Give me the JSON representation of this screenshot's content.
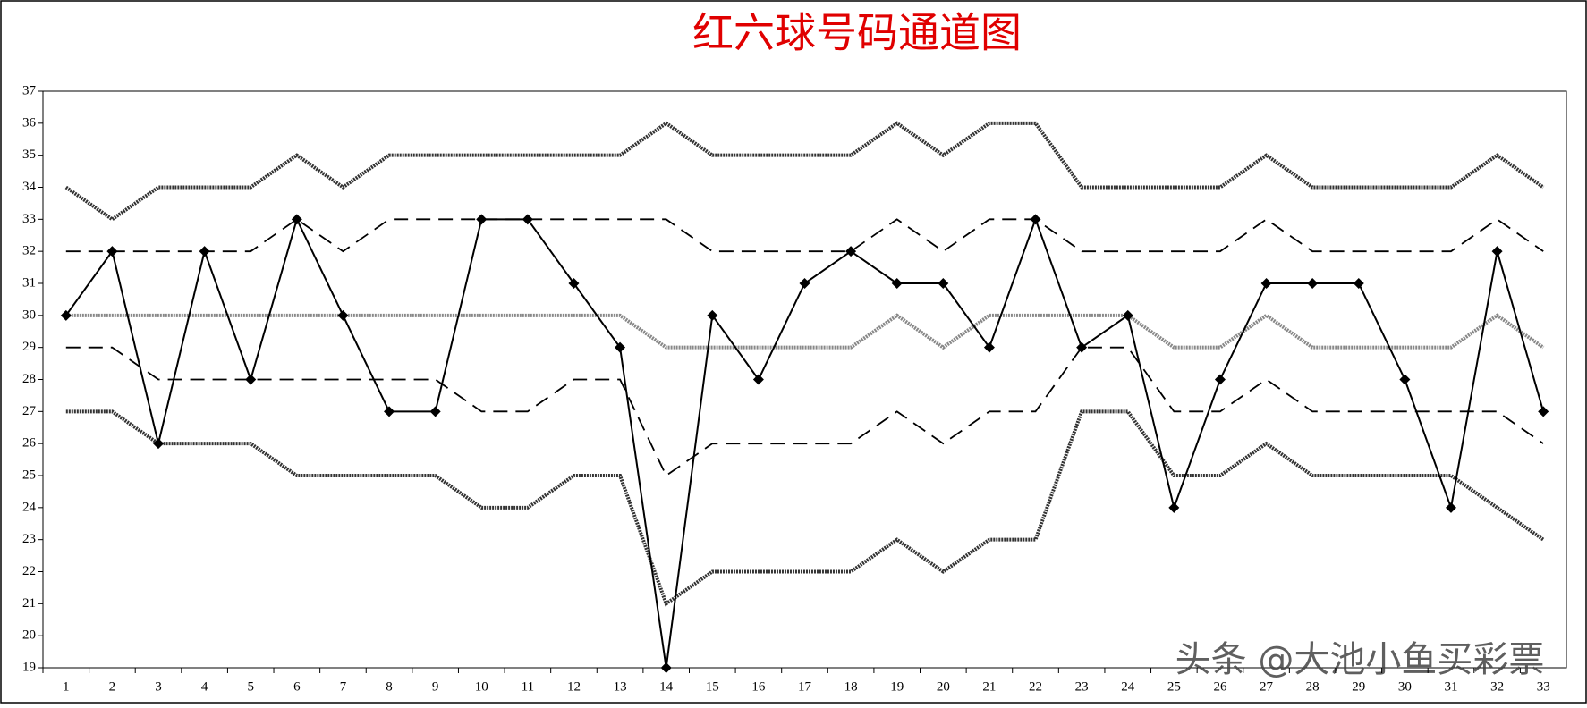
{
  "chart_data": {
    "type": "line",
    "title": "红六球号码通道图",
    "watermark": "头条 @大池小鱼买彩票",
    "categories": [
      "1",
      "2",
      "3",
      "4",
      "5",
      "6",
      "7",
      "8",
      "9",
      "10",
      "11",
      "12",
      "13",
      "14",
      "15",
      "16",
      "17",
      "18",
      "19",
      "20",
      "21",
      "22",
      "23",
      "24",
      "25",
      "26",
      "27",
      "28",
      "29",
      "30",
      "31",
      "32",
      "33"
    ],
    "ylim": [
      19,
      37
    ],
    "yticks": [
      19,
      20,
      21,
      22,
      23,
      24,
      25,
      26,
      27,
      28,
      29,
      30,
      31,
      32,
      33,
      34,
      35,
      36,
      37
    ],
    "grid": false,
    "series": [
      {
        "color": "#333333",
        "line_style": "textured",
        "values": [
          34,
          33,
          34,
          34,
          34,
          35,
          34,
          35,
          35,
          35,
          35,
          35,
          35,
          36,
          35,
          35,
          35,
          35,
          36,
          35,
          36,
          36,
          34,
          34,
          34,
          34,
          35,
          34,
          34,
          34,
          34,
          35,
          34
        ]
      },
      {
        "color": "#000000",
        "line_style": "dashed",
        "values": [
          32,
          32,
          32,
          32,
          32,
          33,
          32,
          33,
          33,
          33,
          33,
          33,
          33,
          33,
          32,
          32,
          32,
          32,
          33,
          32,
          33,
          33,
          32,
          32,
          32,
          32,
          33,
          32,
          32,
          32,
          32,
          33,
          32
        ]
      },
      {
        "color": "#888888",
        "line_style": "textured",
        "values": [
          30,
          30,
          30,
          30,
          30,
          30,
          30,
          30,
          30,
          30,
          30,
          30,
          30,
          29,
          29,
          29,
          29,
          29,
          30,
          29,
          30,
          30,
          30,
          30,
          29,
          29,
          30,
          29,
          29,
          29,
          29,
          30,
          29
        ]
      },
      {
        "color": "#000000",
        "line_style": "dashed",
        "values": [
          29,
          29,
          28,
          28,
          28,
          28,
          28,
          28,
          28,
          27,
          27,
          28,
          28,
          25,
          26,
          26,
          26,
          26,
          27,
          26,
          27,
          27,
          29,
          29,
          27,
          27,
          28,
          27,
          27,
          27,
          27,
          27,
          26
        ]
      },
      {
        "color": "#333333",
        "line_style": "textured",
        "values": [
          27,
          27,
          26,
          26,
          26,
          25,
          25,
          25,
          25,
          24,
          24,
          25,
          25,
          21,
          22,
          22,
          22,
          22,
          23,
          22,
          23,
          23,
          27,
          27,
          25,
          25,
          26,
          25,
          25,
          25,
          25,
          24,
          23
        ]
      },
      {
        "color": "#000000",
        "line_style": "solid",
        "marker": "diamond",
        "values": [
          30,
          32,
          26,
          32,
          28,
          33,
          30,
          27,
          27,
          33,
          33,
          31,
          29,
          19,
          30,
          28,
          31,
          32,
          31,
          31,
          29,
          33,
          29,
          30,
          24,
          28,
          31,
          31,
          31,
          28,
          24,
          32,
          27
        ]
      }
    ]
  }
}
